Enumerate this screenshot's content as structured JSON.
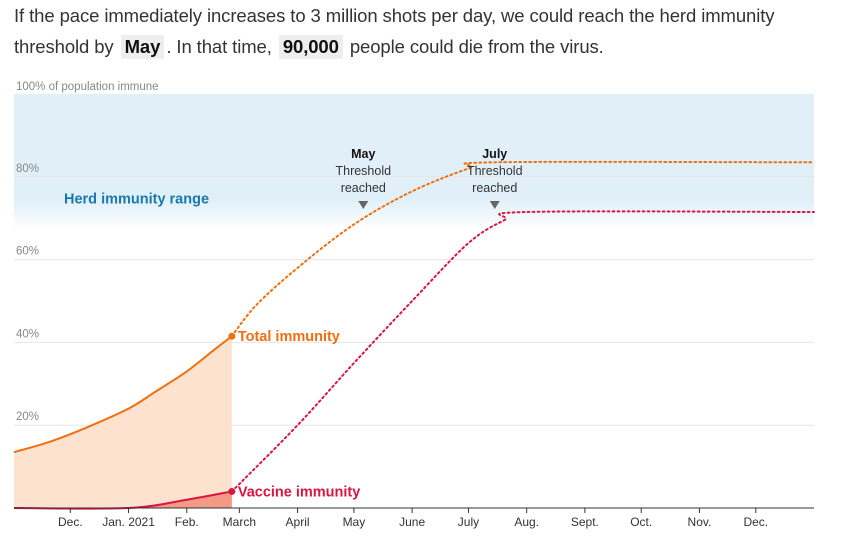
{
  "intro": {
    "part1": "If the pace immediately increases to 3 million shots per day, we could reach the herd immunity threshold by ",
    "month": "May",
    "part2": ". In that time, ",
    "deaths": "90,000",
    "part3": " people could die from the virus."
  },
  "chart_data": {
    "type": "line",
    "title": "",
    "xlabel": "",
    "ylabel": "",
    "y_axis_top_label": "100% of population immune",
    "ylim": [
      0,
      100
    ],
    "y_ticks": [
      {
        "value": 20,
        "label": "20%"
      },
      {
        "value": 40,
        "label": "40%"
      },
      {
        "value": 60,
        "label": "60%"
      },
      {
        "value": 80,
        "label": "80%"
      }
    ],
    "x_ticks": [
      {
        "date": "2020-12-01",
        "label": "Dec."
      },
      {
        "date": "2021-01-01",
        "label": "Jan. 2021"
      },
      {
        "date": "2021-02-01",
        "label": "Feb."
      },
      {
        "date": "2021-03-01",
        "label": "March"
      },
      {
        "date": "2021-04-01",
        "label": "April"
      },
      {
        "date": "2021-05-01",
        "label": "May"
      },
      {
        "date": "2021-06-01",
        "label": "June"
      },
      {
        "date": "2021-07-01",
        "label": "July"
      },
      {
        "date": "2021-08-01",
        "label": "Aug."
      },
      {
        "date": "2021-09-01",
        "label": "Sept."
      },
      {
        "date": "2021-10-01",
        "label": "Oct."
      },
      {
        "date": "2021-11-01",
        "label": "Nov."
      },
      {
        "date": "2021-12-01",
        "label": "Dec."
      }
    ],
    "x_range": [
      "2020-11-01",
      "2022-01-01"
    ],
    "herd_immunity_range": {
      "label": "Herd immunity range",
      "from": 67,
      "to": 100
    },
    "series": [
      {
        "name": "Total immunity",
        "color": "#f26f0f",
        "observed": [
          {
            "x": "2020-11-01",
            "y": 13.5
          },
          {
            "x": "2020-11-20",
            "y": 16
          },
          {
            "x": "2020-12-10",
            "y": 19.5
          },
          {
            "x": "2021-01-01",
            "y": 24
          },
          {
            "x": "2021-01-15",
            "y": 28
          },
          {
            "x": "2021-02-01",
            "y": 33
          },
          {
            "x": "2021-02-15",
            "y": 38
          },
          {
            "x": "2021-02-25",
            "y": 41.5
          }
        ],
        "projected": [
          {
            "x": "2021-02-25",
            "y": 41.5
          },
          {
            "x": "2021-03-10",
            "y": 49
          },
          {
            "x": "2021-04-01",
            "y": 58
          },
          {
            "x": "2021-05-01",
            "y": 68.5
          },
          {
            "x": "2021-06-01",
            "y": 76.5
          },
          {
            "x": "2021-07-01",
            "y": 82
          },
          {
            "x": "2021-07-15",
            "y": 83.5
          },
          {
            "x": "2022-01-01",
            "y": 83.5
          }
        ]
      },
      {
        "name": "Vaccine immunity",
        "color": "#d9163f",
        "observed": [
          {
            "x": "2020-11-01",
            "y": 0
          },
          {
            "x": "2021-01-01",
            "y": 0
          },
          {
            "x": "2021-02-01",
            "y": 2
          },
          {
            "x": "2021-02-25",
            "y": 4
          }
        ],
        "projected": [
          {
            "x": "2021-02-25",
            "y": 4
          },
          {
            "x": "2021-04-01",
            "y": 20
          },
          {
            "x": "2021-05-01",
            "y": 35
          },
          {
            "x": "2021-06-01",
            "y": 50
          },
          {
            "x": "2021-07-01",
            "y": 64
          },
          {
            "x": "2021-07-20",
            "y": 69.5
          },
          {
            "x": "2021-08-01",
            "y": 71.5
          },
          {
            "x": "2022-01-01",
            "y": 71.5
          }
        ]
      }
    ],
    "annotations": [
      {
        "month": "May",
        "text1": "Threshold",
        "text2": "reached",
        "date": "2021-05-06"
      },
      {
        "month": "July",
        "text1": "Threshold",
        "text2": "reached",
        "date": "2021-07-15"
      }
    ],
    "colors": {
      "band": "#e1f0f8",
      "band_label": "#1a78b0",
      "grid": "#e6e6e6",
      "axis": "#333333",
      "tick_text": "#333333",
      "y_text": "#888888",
      "total_fill": "#fde3cf",
      "vaccine_fill": "#f39a86",
      "arrow": "#666666"
    }
  }
}
